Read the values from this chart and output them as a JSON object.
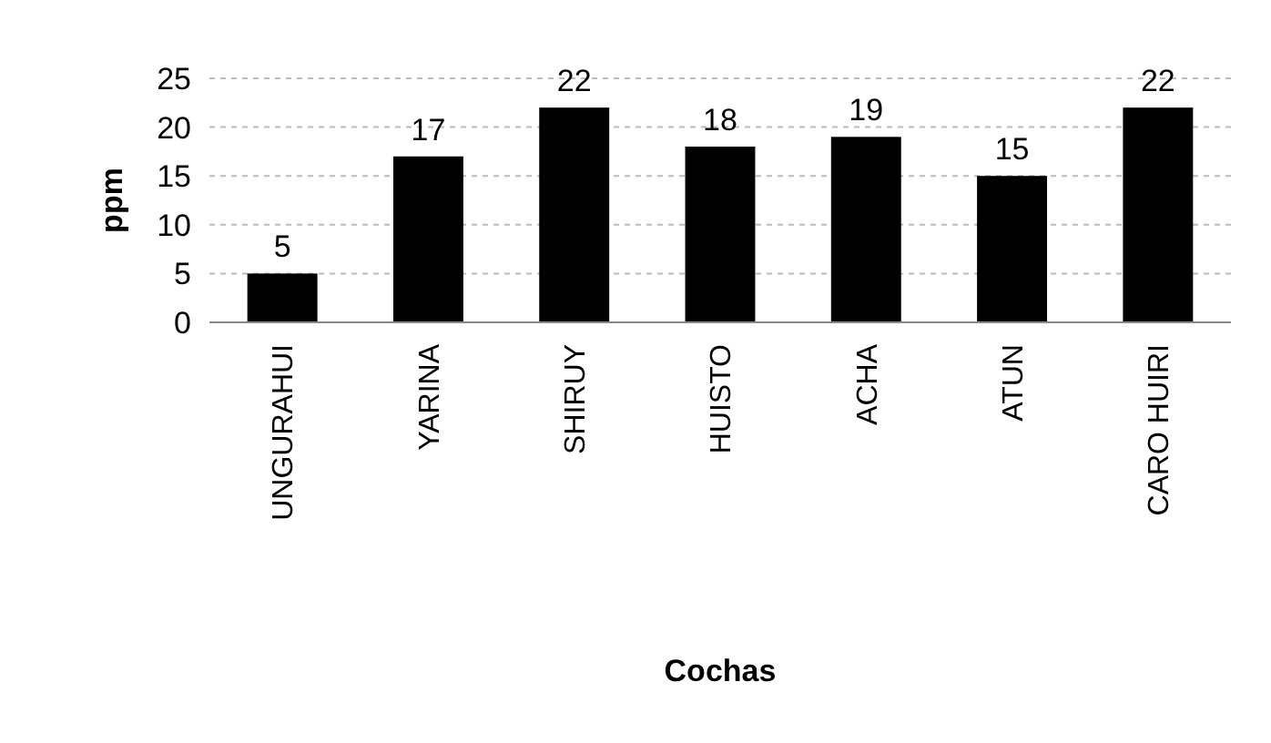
{
  "chart_data": {
    "type": "bar",
    "xlabel": "Cochas",
    "ylabel": "ppm",
    "categories": [
      "UNGURAHUI",
      "YARINA",
      "SHIRUY",
      "HUISTO",
      "ACHA",
      "ATUN",
      "CARO HUIRI"
    ],
    "values": [
      5,
      17,
      22,
      18,
      19,
      15,
      22
    ],
    "color": "#000000",
    "ylim": [
      0,
      25
    ],
    "yticks": [
      0,
      5,
      10,
      15,
      20,
      25
    ],
    "grid": "y",
    "data_labels": true
  }
}
